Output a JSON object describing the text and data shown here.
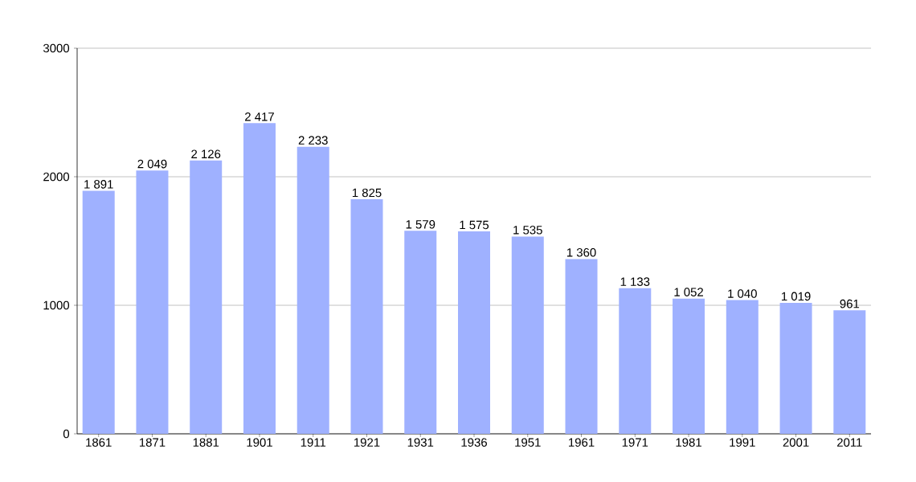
{
  "chart_data": {
    "type": "bar",
    "categories": [
      "1861",
      "1871",
      "1881",
      "1901",
      "1911",
      "1921",
      "1931",
      "1936",
      "1951",
      "1961",
      "1971",
      "1981",
      "1991",
      "2001",
      "2011"
    ],
    "values": [
      1891,
      2049,
      2126,
      2417,
      2233,
      1825,
      1579,
      1575,
      1535,
      1360,
      1133,
      1052,
      1040,
      1019,
      961
    ],
    "value_labels": [
      "1 891",
      "2 049",
      "2 126",
      "2 417",
      "2 233",
      "1 825",
      "1 579",
      "1 575",
      "1 535",
      "1 360",
      "1 133",
      "1 052",
      "1 040",
      "1 019",
      "961"
    ],
    "color": "#9fb1ff",
    "ylim": [
      0,
      3000
    ],
    "yticks": [
      0,
      1000,
      2000,
      3000
    ],
    "grid": "y"
  }
}
